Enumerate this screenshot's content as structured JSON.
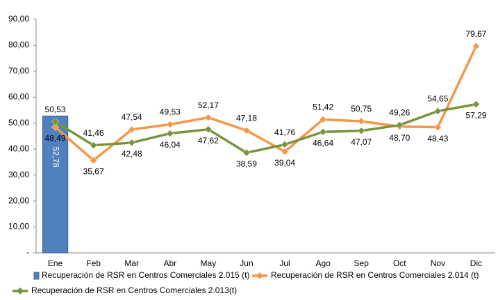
{
  "chart_data": {
    "type": "combo",
    "categories": [
      "Ene",
      "Feb",
      "Mar",
      "Abr",
      "May",
      "Jun",
      "Jul",
      "Ago",
      "Sep",
      "Oct",
      "Nov",
      "Dic"
    ],
    "series": [
      {
        "name": "Recuperación de RSR en Centros Comerciales 2.015 (t)",
        "type": "bar",
        "color": "#4f81bd",
        "values": [
          52.78,
          null,
          null,
          null,
          null,
          null,
          null,
          null,
          null,
          null,
          null,
          null
        ],
        "value_labels": [
          "52,78",
          null,
          null,
          null,
          null,
          null,
          null,
          null,
          null,
          null,
          null,
          null
        ]
      },
      {
        "name": "Recuperación de RSR en Centros Comerciales 2.014 (t)",
        "type": "line",
        "color": "#f79646",
        "values": [
          48.49,
          35.67,
          47.54,
          49.53,
          52.17,
          47.18,
          39.04,
          51.42,
          50.75,
          48.7,
          48.43,
          79.67
        ],
        "value_labels": [
          "48,49",
          "35,67",
          "47,54",
          "49,53",
          "52,17",
          "47,18",
          "39,04",
          "51,42",
          "50,75",
          "48,70",
          "48,43",
          "79,67"
        ]
      },
      {
        "name": "Recuperación de RSR en Centros Comerciales 2.013(t)",
        "type": "line",
        "color": "#77933c",
        "values": [
          50.53,
          41.46,
          42.48,
          46.04,
          47.62,
          38.59,
          41.76,
          46.64,
          47.07,
          49.26,
          54.65,
          57.29
        ],
        "value_labels": [
          "50,53",
          "41,46",
          "42,48",
          "46,04",
          "47,62",
          "38,59",
          "41,76",
          "46,64",
          "47,07",
          "49,26",
          "54,65",
          "57,29"
        ]
      }
    ],
    "ylim": [
      0,
      90
    ],
    "yticks": [
      {
        "value": 0,
        "label": "-"
      },
      {
        "value": 10,
        "label": "10,00"
      },
      {
        "value": 20,
        "label": "20,00"
      },
      {
        "value": 30,
        "label": "30,00"
      },
      {
        "value": 40,
        "label": "40,00"
      },
      {
        "value": 50,
        "label": "50,00"
      },
      {
        "value": 60,
        "label": "60,00"
      },
      {
        "value": 70,
        "label": "70,00"
      },
      {
        "value": 80,
        "label": "80,00"
      },
      {
        "value": 90,
        "label": "90,00"
      }
    ],
    "grid": false
  }
}
